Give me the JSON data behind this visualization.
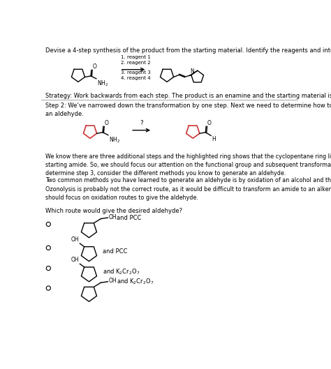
{
  "title_text": "Devise a 4-step synthesis of the product from the starting material. Identify the reagents and intermediates.",
  "strategy_text": "Strategy: Work backwards from each step. The product is an enamine and the starting material is an amide.",
  "step2_header": "Step 2: We’ve narrowed down the transformation by one step. Next we need to determine how to transform an amide to\nan aldehyde.",
  "paragraph1": "We know there are three additional steps and the highlighted ring shows that the cyclopentane ring likely comes from the\nstarting amide. So, we should focus our attention on the functional group and subsequent transformations. Working backwards to\ndetermine step 3, consider the different methods you know to generate an aldehyde.",
  "paragraph2": "Two common methods you have learned to generate an aldehyde is by oxidation of an alcohol and through ozonolysis.\nOzonolysis is probably not the correct route, as it would be difficult to transform an amide to an alkene intermediate. Thus we\nshould focus on oxidation routes to give the aldehyde.",
  "question_text": "Which route would give the desired aldehyde?",
  "background_color": "#ffffff",
  "text_color": "#000000",
  "highlight_color": "#cc3333",
  "separator_color": "#999999"
}
